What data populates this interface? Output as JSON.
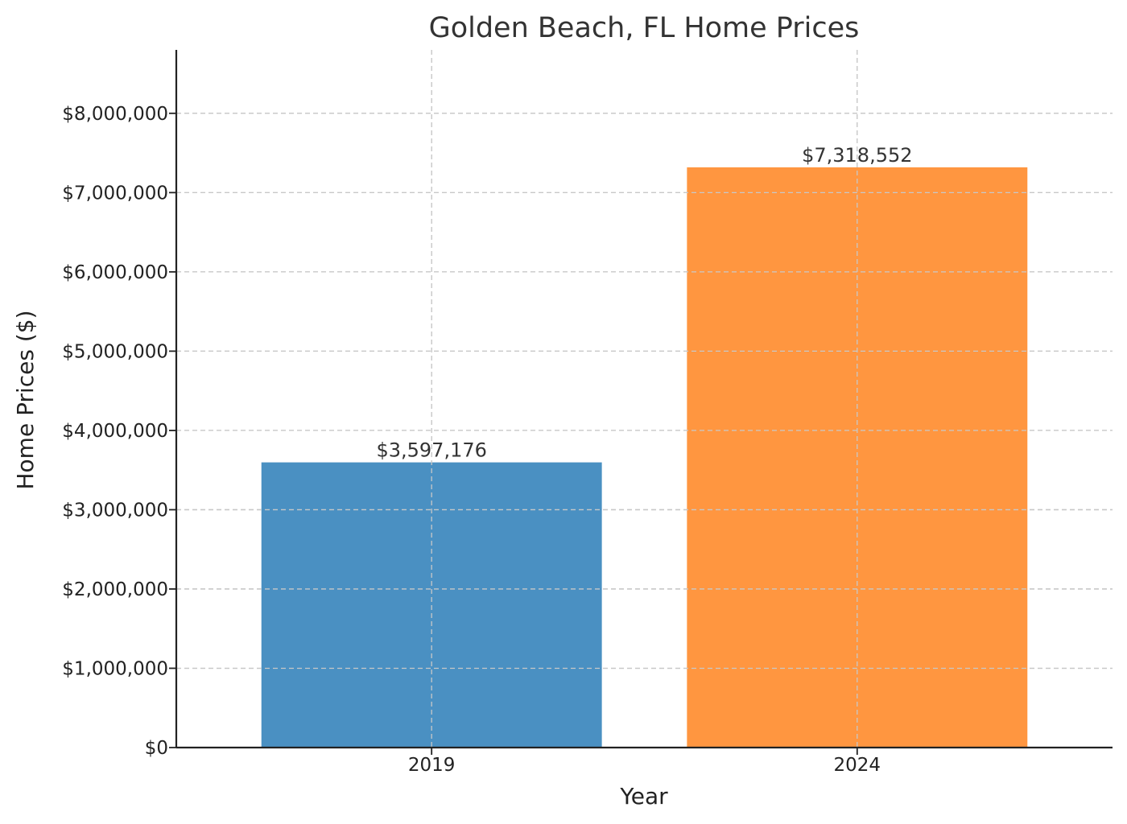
{
  "chart_data": {
    "type": "bar",
    "title": "Golden Beach, FL Home Prices",
    "xlabel": "Year",
    "ylabel": "Home Prices ($)",
    "categories": [
      "2019",
      "2024"
    ],
    "values": [
      3597176,
      7318552
    ],
    "value_labels": [
      "$3,597,176",
      "$7,318,552"
    ],
    "colors": [
      "#4a90c2",
      "#ff9640"
    ],
    "ylim": [
      0,
      8800000
    ],
    "yticks": [
      0,
      1000000,
      2000000,
      3000000,
      4000000,
      5000000,
      6000000,
      7000000,
      8000000
    ],
    "ytick_labels": [
      "$0",
      "$1,000,000",
      "$2,000,000",
      "$3,000,000",
      "$4,000,000",
      "$5,000,000",
      "$6,000,000",
      "$7,000,000",
      "$8,000,000"
    ],
    "grid": true,
    "legend": "none"
  }
}
